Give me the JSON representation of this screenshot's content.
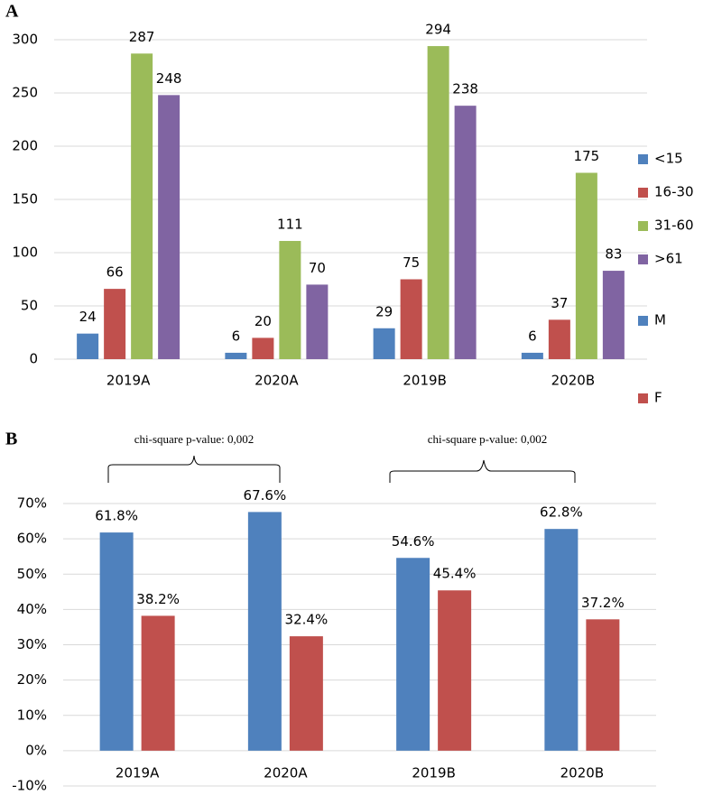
{
  "chart_data": [
    {
      "type": "bar",
      "panel_label": "A",
      "categories": [
        "2019A",
        "2020A",
        "2019B",
        "2020B"
      ],
      "series": [
        {
          "name": "<15",
          "color": "#4f81bd",
          "values": [
            24,
            6,
            29,
            6
          ]
        },
        {
          "name": "16-30",
          "color": "#c0504d",
          "values": [
            66,
            20,
            75,
            37
          ]
        },
        {
          "name": "31-60",
          "color": "#9bbb59",
          "values": [
            287,
            111,
            294,
            175
          ]
        },
        {
          "name": ">61",
          "color": "#8064a2",
          "values": [
            248,
            70,
            238,
            83
          ]
        }
      ],
      "ylim": [
        0,
        300
      ],
      "yticks": [
        0,
        50,
        100,
        150,
        200,
        250,
        300
      ],
      "grid": true,
      "legend": "right"
    },
    {
      "type": "bar",
      "panel_label": "B",
      "categories": [
        "2019A",
        "2020A",
        "2019B",
        "2020B"
      ],
      "series": [
        {
          "name": "M",
          "color": "#4f81bd",
          "values": [
            61.8,
            67.6,
            54.6,
            62.8
          ],
          "value_labels": [
            "61.8%",
            "67.6%",
            "54.6%",
            "62.8%"
          ]
        },
        {
          "name": "F",
          "color": "#c0504d",
          "values": [
            38.2,
            32.4,
            45.4,
            37.2
          ],
          "value_labels": [
            "38.2%",
            "32.4%",
            "45.4%",
            "37.2%"
          ]
        }
      ],
      "annotations": [
        "chi-square p-value: 0,002",
        "chi-square p-value: 0,002"
      ],
      "ylim": [
        -10,
        70
      ],
      "yticks": [
        {
          "value": -10,
          "label": "-10%"
        },
        {
          "value": 0,
          "label": "0%"
        },
        {
          "value": 10,
          "label": "10%"
        },
        {
          "value": 20,
          "label": "20%"
        },
        {
          "value": 30,
          "label": "30%"
        },
        {
          "value": 40,
          "label": "40%"
        },
        {
          "value": 50,
          "label": "50%"
        },
        {
          "value": 60,
          "label": "60%"
        },
        {
          "value": 70,
          "label": "70%"
        }
      ],
      "grid": true,
      "legend": "right"
    }
  ]
}
